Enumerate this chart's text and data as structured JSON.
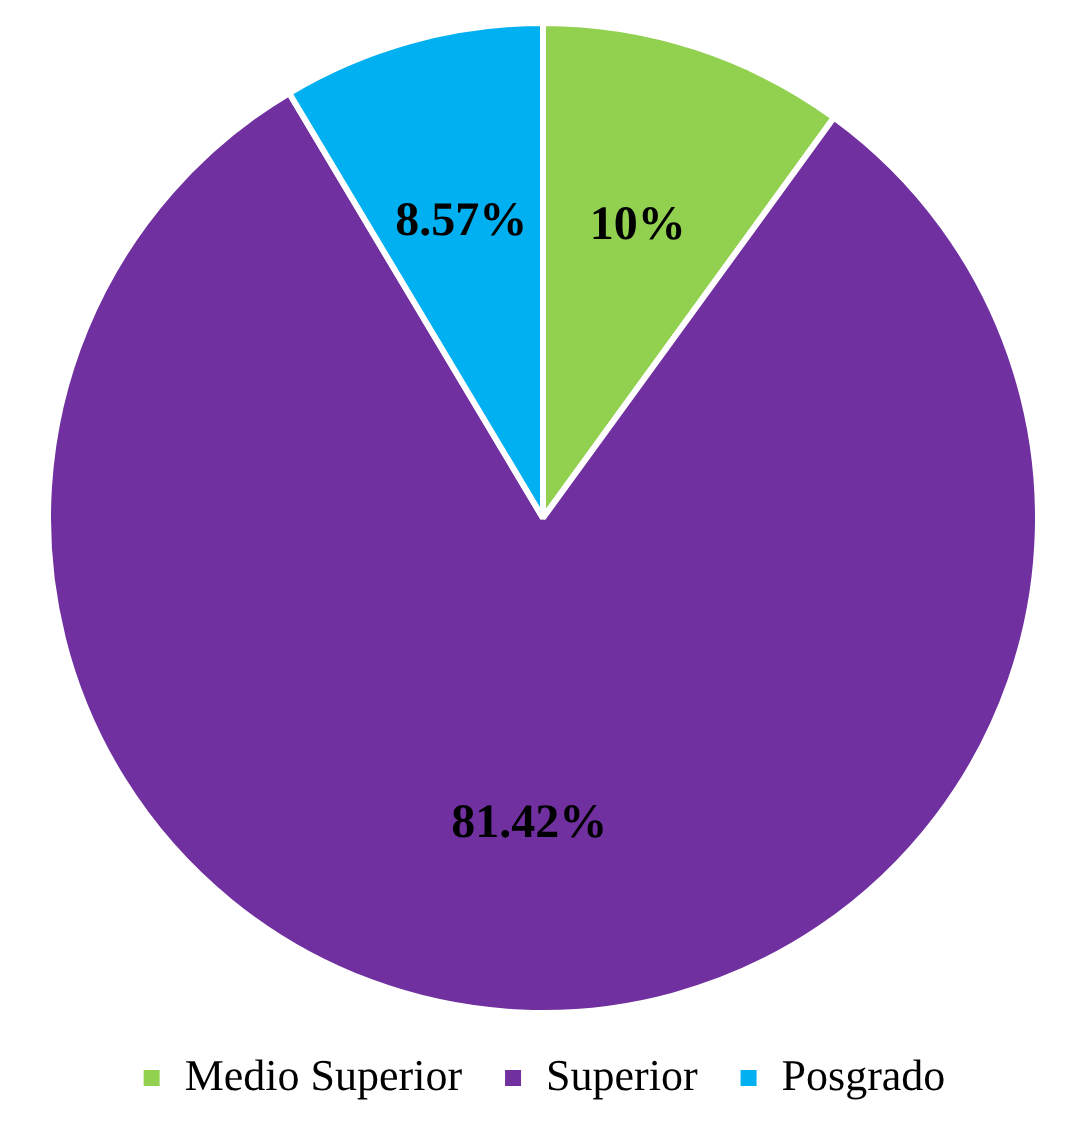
{
  "chart_data": {
    "type": "pie",
    "categories": [
      "Medio Superior",
      "Superior",
      "Posgrado"
    ],
    "values": [
      10,
      81.42,
      8.57
    ],
    "colors": [
      "#92d050",
      "#7030a0",
      "#00b0f0"
    ],
    "value_labels": [
      "10%",
      "81.42%",
      "8.57%"
    ],
    "legend": "bottom"
  }
}
